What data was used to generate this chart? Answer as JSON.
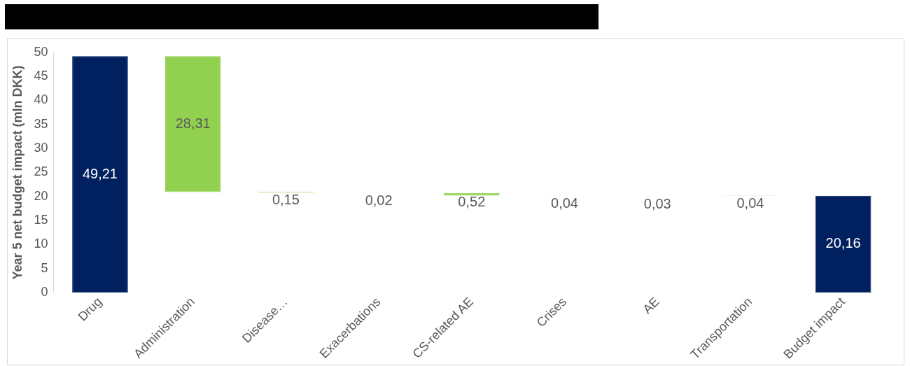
{
  "chart_data": {
    "type": "bar",
    "ylabel": "Year 5 net budget impact (mln DKK)",
    "categories": [
      "Drug",
      "Administration",
      "Disease…",
      "Exacerbations",
      "CS-related AE",
      "Crises",
      "AE",
      "Transportation",
      "Budget impact"
    ],
    "values": [
      49.21,
      28.31,
      0.15,
      0.02,
      0.52,
      0.04,
      0.03,
      0.04,
      20.16
    ],
    "base": [
      0,
      20.9,
      20.8,
      20.7,
      20.2,
      20.2,
      20.1,
      20.1,
      0
    ],
    "colors": [
      "#002060",
      "#92d050",
      "#92d050",
      "#92d050",
      "#92d050",
      "#d8ecc8",
      "#d8ecc8",
      "#ff0000",
      "#002060"
    ],
    "value_labels": [
      "49,21",
      "28,31",
      "0,15",
      "0,02",
      "0,52",
      "0,04",
      "0,03",
      "0,04",
      "20,16"
    ],
    "ylim": [
      0,
      50
    ],
    "yticks": [
      0,
      5,
      10,
      15,
      20,
      25,
      30,
      35,
      40,
      45,
      50
    ],
    "grid": false,
    "legend": false
  }
}
